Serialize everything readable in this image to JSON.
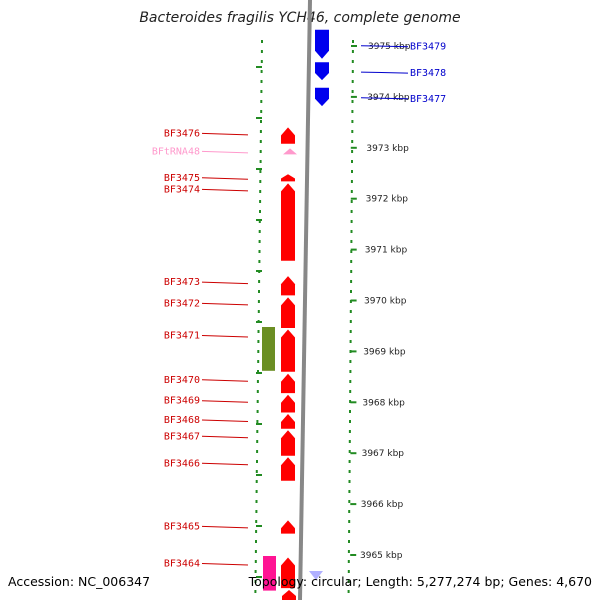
{
  "title": "Bacteroides fragilis YCH46, complete genome",
  "footer": {
    "accession": "Accession: NC_006347",
    "topology": "Topology: circular; Length: 5,277,274 bp; Genes: 4,670"
  },
  "colors": {
    "forward_gene": "#ff0000",
    "reverse_gene": "#0000ee",
    "rna": "#ff99cc",
    "other_feature": "#6b8e23",
    "magenta_feature": "#ff1493",
    "ruler_ticks": "#228b22",
    "axis": "#888888",
    "left_label": "#cc0000",
    "right_label": "#0000cc"
  },
  "kbp_ticks": [
    {
      "kbp": 3975,
      "label": "3975 kbp"
    },
    {
      "kbp": 3974,
      "label": "3974 kbp"
    },
    {
      "kbp": 3973,
      "label": "3973 kbp"
    },
    {
      "kbp": 3972,
      "label": "3972 kbp"
    },
    {
      "kbp": 3971,
      "label": "3971 kbp"
    },
    {
      "kbp": 3970,
      "label": "3970 kbp"
    },
    {
      "kbp": 3969,
      "label": "3969 kbp"
    },
    {
      "kbp": 3968,
      "label": "3968 kbp"
    },
    {
      "kbp": 3967,
      "label": "3967 kbp"
    },
    {
      "kbp": 3966,
      "label": "3966 kbp"
    },
    {
      "kbp": 3965,
      "label": "3965 kbp"
    }
  ],
  "right_genes": [
    {
      "label": "BF3479",
      "start": 3975.32,
      "end": 3974.75
    },
    {
      "label": "BF3478",
      "start": 3974.68,
      "end": 3974.33
    },
    {
      "label": "BF3477",
      "start": 3974.18,
      "end": 3973.82
    }
  ],
  "left_genes": [
    {
      "label": "BF3476",
      "start": 3973.4,
      "end": 3973.08,
      "type": "gene"
    },
    {
      "label": "BFtRNA48",
      "start": 3972.98,
      "end": 3972.88,
      "type": "rna"
    },
    {
      "label": "BF3475",
      "start": 3972.48,
      "end": 3972.34,
      "type": "gene"
    },
    {
      "label": "BF3474",
      "start": 3972.3,
      "end": 3970.78,
      "type": "gene"
    },
    {
      "label": "BF3473",
      "start": 3970.48,
      "end": 3970.1,
      "type": "gene"
    },
    {
      "label": "BF3472",
      "start": 3970.06,
      "end": 3969.46,
      "type": "gene"
    },
    {
      "label": "BF3471",
      "start": 3969.43,
      "end": 3968.6,
      "type": "gene"
    },
    {
      "label": "BF3470",
      "start": 3968.56,
      "end": 3968.18,
      "type": "gene"
    },
    {
      "label": "BF3469",
      "start": 3968.15,
      "end": 3967.8,
      "type": "gene"
    },
    {
      "label": "BF3468",
      "start": 3967.77,
      "end": 3967.48,
      "type": "gene"
    },
    {
      "label": "BF3467",
      "start": 3967.45,
      "end": 3966.95,
      "type": "gene"
    },
    {
      "label": "BF3466",
      "start": 3966.92,
      "end": 3966.46,
      "type": "gene"
    },
    {
      "label": "BF3465",
      "start": 3965.68,
      "end": 3965.42,
      "type": "gene"
    },
    {
      "label": "BF3464",
      "start": 3964.95,
      "end": 3964.35,
      "type": "gene"
    }
  ],
  "extra_features": [
    {
      "name": "green-feature",
      "start": 3969.48,
      "end": 3968.62,
      "type": "other_feature"
    },
    {
      "name": "magenta-feature",
      "start": 3964.98,
      "end": 3964.3,
      "type": "magenta_feature"
    }
  ]
}
